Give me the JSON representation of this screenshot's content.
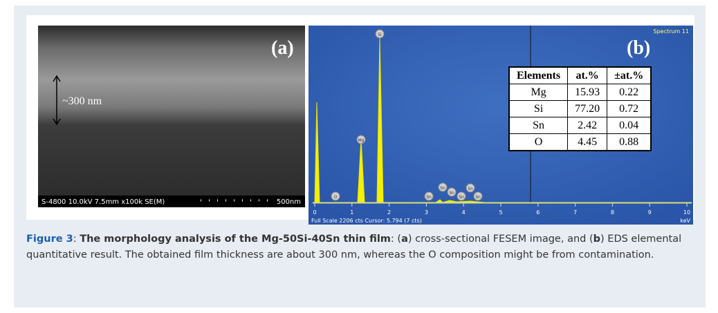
{
  "panel_a": {
    "label": "(a)",
    "thickness": "~300 nm",
    "info_bar": "S-4800 10.0kV 7.5mm x100k SE(M)",
    "scale": "500nm"
  },
  "panel_b": {
    "label": "(b)",
    "spectrum_name": "Spectrum 11",
    "peak_labels": [
      "Si",
      "Mg",
      "O",
      "Sn",
      "Sn",
      "Sn",
      "Sn",
      "Sn",
      "Sn"
    ],
    "axis_ticks": [
      "0",
      "1",
      "2",
      "3",
      "4",
      "5",
      "6",
      "7",
      "8",
      "9",
      "10"
    ],
    "axis_unit": "keV",
    "status": "Full Scale 2206 cts Cursor: 5.794 (7 cts)",
    "table": {
      "header": [
        "Elements",
        "at.%",
        "±at.%"
      ],
      "rows": [
        [
          "Mg",
          "15.93",
          "0.22"
        ],
        [
          "Si",
          "77.20",
          "0.72"
        ],
        [
          "Sn",
          "2.42",
          "0.04"
        ],
        [
          "O",
          "4.45",
          "0.88"
        ]
      ]
    }
  },
  "caption": {
    "figure": "Figure 3",
    "sep1": ": ",
    "title": "The morphology analysis of the Mg-50Si-40Sn thin film",
    "t1": ": (",
    "a": "a",
    "t2": ") cross-sectional FESEM image, and (",
    "b": "b",
    "t3": ") EDS elemental quantitative result.  The obtained film thickness are about 300 nm, whereas the O composition might be from contamination."
  }
}
